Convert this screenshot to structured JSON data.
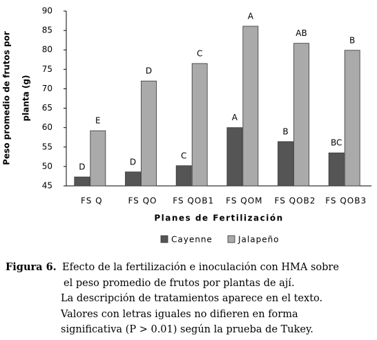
{
  "chart_data": {
    "type": "bar",
    "ylabel": [
      "Peso promedio de frutos por",
      "planta (g)"
    ],
    "xlabel": "Planes de Fertilización",
    "categories": [
      "FS Q",
      "FS QO",
      "FS QOB1",
      "FS QOM",
      "FS QOB2",
      "FS QOB3"
    ],
    "series": [
      {
        "name": "Cayenne",
        "color": "#555555",
        "values": [
          47.3,
          48.6,
          50.2,
          60,
          56.4,
          53.5
        ],
        "letters": [
          "D",
          "D",
          "C",
          "A",
          "B",
          "BC"
        ]
      },
      {
        "name": "Jalapeño",
        "color": "#aaaaaa",
        "values": [
          59.2,
          72,
          76.5,
          86.1,
          81.7,
          79.9
        ],
        "letters": [
          "E",
          "D",
          "C",
          "A",
          "AB",
          "B"
        ]
      }
    ],
    "ylim": [
      45,
      90
    ],
    "yticks": [
      45,
      50,
      55,
      60,
      65,
      70,
      75,
      80,
      85,
      90
    ],
    "grid": false,
    "legend": "bottom"
  },
  "caption": {
    "label": "Figura 6.",
    "lines": [
      "Efecto de la fertilización e inoculación con HMA sobre",
      "el peso promedio de frutos por plantas de ají.",
      "La descripción de tratamientos aparece en el texto.",
      "Valores con letras iguales no difieren en forma",
      "significativa (P > 0.01) según la prueba de Tukey."
    ]
  }
}
